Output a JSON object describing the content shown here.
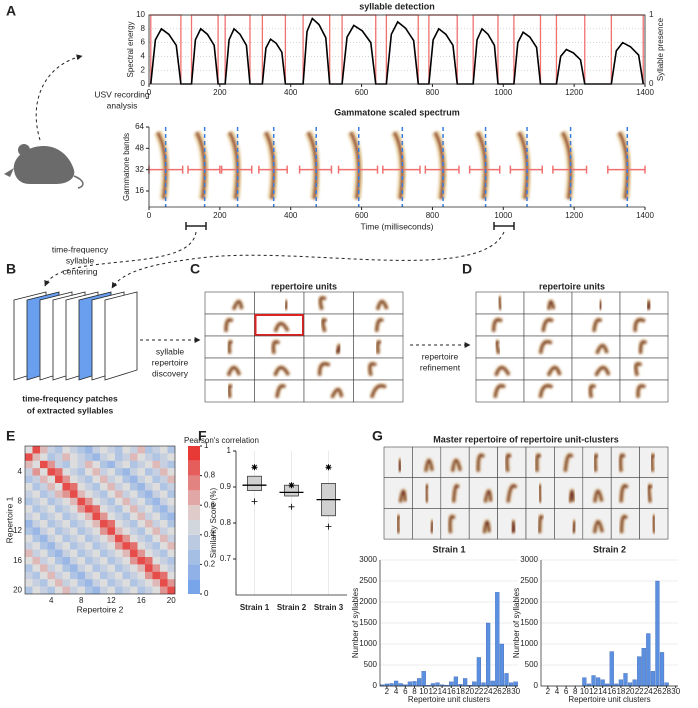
{
  "panel_labels": [
    "A",
    "B",
    "C",
    "D",
    "E",
    "F",
    "G"
  ],
  "diagram": {
    "usv_label": [
      "USV recording",
      "analysis"
    ],
    "centering_label": [
      "time-frequency",
      "syllable",
      "centering"
    ],
    "patches_label": [
      "time-frequency patches",
      "of extracted syllables"
    ],
    "discovery_label": [
      "syllable",
      "repertoire",
      "discovery"
    ],
    "refinement_label": [
      "repertoire",
      "refinement"
    ],
    "repertoire_c_title": "repertoire units",
    "repertoire_d_title": "repertoire units",
    "master_title": "Master repertoire of repertoire unit-clusters"
  },
  "chart_data": [
    {
      "type": "line",
      "title": "syllable detection",
      "ylabel": "Spectral energy",
      "y2label": "Syllable presence",
      "color": "#000000",
      "interval_color": "#f07070",
      "x": [
        5,
        18,
        35,
        56,
        77,
        90,
        120,
        131,
        146,
        165,
        184,
        195,
        215,
        226,
        240,
        257,
        275,
        285,
        320,
        330,
        343,
        359,
        375,
        385,
        435,
        446,
        461,
        480,
        499,
        510,
        545,
        559,
        578,
        602,
        626,
        640,
        670,
        684,
        702,
        724,
        747,
        760,
        790,
        802,
        818,
        838,
        858,
        870,
        915,
        926,
        940,
        957,
        975,
        985,
        1030,
        1041,
        1056,
        1075,
        1094,
        1105,
        1150,
        1162,
        1178,
        1198,
        1218,
        1230,
        1305,
        1319,
        1337,
        1359,
        1382,
        1395
      ],
      "values": [
        0,
        6.4,
        8,
        7.2,
        5.6,
        0,
        0,
        6.4,
        8,
        7.2,
        5.6,
        0,
        0,
        6.4,
        8,
        7.2,
        5.6,
        0,
        0,
        5.2,
        6.5,
        5.9,
        4.6,
        0,
        0,
        7.6,
        9.5,
        8.6,
        6.7,
        0,
        0,
        6.8,
        8.5,
        7.7,
        6,
        0,
        0,
        7.2,
        9,
        8.1,
        6.3,
        0,
        0,
        6.4,
        8,
        7.2,
        5.6,
        0,
        0,
        6.4,
        8,
        7.2,
        5.6,
        0,
        0,
        6,
        7.5,
        6.8,
        5.3,
        0,
        0,
        4,
        5,
        4.5,
        3.5,
        0,
        0,
        4.8,
        6,
        5.4,
        4.2,
        0
      ],
      "syllable_intervals": [
        [
          5,
          90
        ],
        [
          120,
          195
        ],
        [
          215,
          285
        ],
        [
          320,
          385
        ],
        [
          435,
          510
        ],
        [
          545,
          640
        ],
        [
          670,
          760
        ],
        [
          790,
          870
        ],
        [
          915,
          985
        ],
        [
          1030,
          1105
        ],
        [
          1150,
          1230
        ],
        [
          1305,
          1395
        ]
      ],
      "xlim": [
        0,
        1400
      ],
      "xticks": [
        0,
        200,
        400,
        600,
        800,
        1000,
        1200,
        1400
      ],
      "ylim": [
        0,
        10
      ],
      "yticks": [
        0,
        2,
        4,
        6,
        8,
        10
      ],
      "y2lim": [
        0,
        1
      ],
      "y2ticks": [
        0,
        1
      ],
      "grid": true
    },
    {
      "type": "spectrogram",
      "title": "Gammatone scaled spectrum",
      "ylabel": "Gammatone bands",
      "xlabel": "Time (milliseconds)",
      "center_color": "#3b7ddd",
      "segment_color": "#f07070",
      "centers": [
        47,
        157,
        250,
        352,
        472,
        592,
        715,
        830,
        950,
        1067,
        1190,
        1350
      ],
      "center_band": 32,
      "segments": [
        [
          0,
          95
        ],
        [
          110,
          200
        ],
        [
          205,
          290
        ],
        [
          310,
          390
        ],
        [
          425,
          515
        ],
        [
          535,
          645
        ],
        [
          660,
          765
        ],
        [
          780,
          875
        ],
        [
          905,
          990
        ],
        [
          1020,
          1110
        ],
        [
          1140,
          1235
        ],
        [
          1295,
          1400
        ]
      ],
      "xlim": [
        0,
        1400
      ],
      "xticks": [
        0,
        200,
        400,
        600,
        800,
        1000,
        1200,
        1400
      ],
      "ylim": [
        4,
        64
      ],
      "yticks": [
        16,
        32,
        48,
        64
      ]
    },
    {
      "type": "heatmap",
      "xlabel": "Repertoire 2",
      "ylabel": "Repertoire 1",
      "colorbar_label": "Pearson's correlation",
      "values": [
        [
          0.5,
          0.9,
          0.6,
          0.4,
          0.3,
          0.5,
          0.4,
          0.3,
          0.2,
          0.4,
          0.5,
          0.4,
          0.3,
          0.5,
          0.4,
          0.6,
          0.3,
          0.4,
          0.5,
          0.3
        ],
        [
          0.9,
          0.6,
          0.5,
          0.3,
          0.4,
          0.6,
          0.5,
          0.4,
          0.3,
          0.2,
          0.4,
          0.5,
          0.3,
          0.4,
          0.6,
          0.5,
          0.4,
          0.3,
          0.4,
          0.5
        ],
        [
          0.6,
          0.5,
          0.9,
          0.7,
          0.4,
          0.3,
          0.5,
          0.4,
          0.6,
          0.5,
          0.3,
          0.2,
          0.4,
          0.5,
          0.3,
          0.4,
          0.5,
          0.6,
          0.4,
          0.3
        ],
        [
          0.4,
          0.7,
          0.5,
          0.9,
          0.8,
          0.5,
          0.4,
          0.3,
          0.5,
          0.6,
          0.4,
          0.5,
          0.3,
          0.2,
          0.4,
          0.5,
          0.3,
          0.4,
          0.6,
          0.5
        ],
        [
          0.3,
          0.4,
          0.6,
          0.5,
          0.9,
          0.7,
          0.5,
          0.4,
          0.3,
          0.5,
          0.6,
          0.4,
          0.5,
          0.3,
          0.2,
          0.4,
          0.5,
          0.3,
          0.4,
          0.6
        ],
        [
          0.5,
          0.3,
          0.4,
          0.6,
          0.5,
          0.9,
          0.8,
          0.5,
          0.4,
          0.3,
          0.5,
          0.6,
          0.4,
          0.5,
          0.3,
          0.2,
          0.4,
          0.5,
          0.3,
          0.4
        ],
        [
          0.4,
          0.5,
          0.3,
          0.4,
          0.6,
          0.7,
          0.9,
          0.6,
          0.5,
          0.4,
          0.3,
          0.5,
          0.6,
          0.4,
          0.5,
          0.3,
          0.2,
          0.4,
          0.5,
          0.3
        ],
        [
          0.3,
          0.4,
          0.5,
          0.3,
          0.4,
          0.5,
          0.6,
          0.9,
          0.7,
          0.5,
          0.4,
          0.3,
          0.5,
          0.6,
          0.4,
          0.5,
          0.3,
          0.2,
          0.4,
          0.5
        ],
        [
          0.5,
          0.3,
          0.4,
          0.5,
          0.3,
          0.4,
          0.5,
          0.7,
          0.9,
          0.8,
          0.5,
          0.4,
          0.3,
          0.5,
          0.6,
          0.4,
          0.5,
          0.3,
          0.2,
          0.4
        ],
        [
          0.4,
          0.5,
          0.3,
          0.4,
          0.5,
          0.3,
          0.4,
          0.5,
          0.6,
          0.9,
          0.7,
          0.5,
          0.4,
          0.3,
          0.5,
          0.6,
          0.4,
          0.5,
          0.3,
          0.2
        ],
        [
          0.2,
          0.4,
          0.5,
          0.3,
          0.4,
          0.5,
          0.3,
          0.4,
          0.5,
          0.6,
          0.9,
          0.8,
          0.5,
          0.4,
          0.3,
          0.5,
          0.6,
          0.4,
          0.5,
          0.3
        ],
        [
          0.3,
          0.2,
          0.4,
          0.5,
          0.3,
          0.4,
          0.5,
          0.3,
          0.4,
          0.5,
          0.7,
          0.9,
          0.6,
          0.5,
          0.4,
          0.3,
          0.5,
          0.6,
          0.4,
          0.5
        ],
        [
          0.5,
          0.3,
          0.2,
          0.4,
          0.5,
          0.3,
          0.4,
          0.5,
          0.3,
          0.4,
          0.5,
          0.6,
          0.9,
          0.7,
          0.5,
          0.4,
          0.3,
          0.5,
          0.6,
          0.4
        ],
        [
          0.4,
          0.5,
          0.3,
          0.2,
          0.4,
          0.5,
          0.3,
          0.4,
          0.5,
          0.3,
          0.4,
          0.5,
          0.7,
          0.9,
          0.8,
          0.5,
          0.4,
          0.3,
          0.5,
          0.6
        ],
        [
          0.6,
          0.4,
          0.5,
          0.3,
          0.2,
          0.4,
          0.5,
          0.3,
          0.4,
          0.5,
          0.3,
          0.4,
          0.5,
          0.6,
          0.9,
          0.7,
          0.5,
          0.4,
          0.3,
          0.5
        ],
        [
          0.5,
          0.6,
          0.4,
          0.5,
          0.3,
          0.2,
          0.4,
          0.5,
          0.3,
          0.4,
          0.5,
          0.3,
          0.4,
          0.5,
          0.7,
          0.9,
          0.8,
          0.5,
          0.4,
          0.3
        ],
        [
          0.3,
          0.5,
          0.6,
          0.4,
          0.5,
          0.3,
          0.2,
          0.4,
          0.5,
          0.3,
          0.4,
          0.5,
          0.3,
          0.4,
          0.5,
          0.6,
          0.9,
          0.7,
          0.5,
          0.4
        ],
        [
          0.4,
          0.3,
          0.5,
          0.6,
          0.4,
          0.5,
          0.3,
          0.2,
          0.4,
          0.5,
          0.3,
          0.4,
          0.5,
          0.3,
          0.4,
          0.5,
          0.7,
          0.9,
          0.8,
          0.5
        ],
        [
          0.5,
          0.4,
          0.3,
          0.5,
          0.6,
          0.4,
          0.5,
          0.3,
          0.2,
          0.4,
          0.5,
          0.3,
          0.4,
          0.5,
          0.3,
          0.4,
          0.5,
          0.6,
          0.9,
          0.7
        ],
        [
          0.3,
          0.5,
          0.4,
          0.3,
          0.5,
          0.6,
          0.4,
          0.5,
          0.3,
          0.2,
          0.4,
          0.5,
          0.3,
          0.4,
          0.5,
          0.3,
          0.4,
          0.5,
          0.7,
          0.9
        ]
      ],
      "xticks": [
        4,
        8,
        12,
        16,
        20
      ],
      "yticks": [
        4,
        8,
        12,
        16,
        20
      ],
      "clim": [
        0,
        1
      ],
      "cticks": [
        0,
        0.2,
        0.4,
        0.6,
        0.8,
        1
      ]
    },
    {
      "type": "box",
      "ylabel": "Similarity Score (%)",
      "categories": [
        "Strain 1",
        "Strain 2",
        "Strain 3"
      ],
      "color": "#d0d0d0",
      "boxes": [
        {
          "q1": 0.89,
          "median": 0.905,
          "q3": 0.93,
          "upper": 0.955,
          "lower": 0.86
        },
        {
          "q1": 0.875,
          "median": 0.885,
          "q3": 0.905,
          "upper": 0.905,
          "lower": 0.845
        },
        {
          "q1": 0.82,
          "median": 0.865,
          "q3": 0.91,
          "upper": 0.955,
          "lower": 0.79
        }
      ],
      "ylim": [
        0.6,
        1.0
      ],
      "yticks": [
        0.7,
        0.8,
        0.9,
        1
      ]
    },
    {
      "type": "bar",
      "title": "Strain 1",
      "xlabel": "Repertoire unit clusters",
      "ylabel": "Number of syllables",
      "color": "#5b8fe0",
      "x": [
        1,
        2,
        3,
        4,
        5,
        6,
        7,
        8,
        9,
        10,
        11,
        12,
        13,
        14,
        15,
        16,
        17,
        18,
        19,
        20,
        21,
        22,
        23,
        24,
        25,
        26,
        27,
        28,
        29,
        30
      ],
      "values": [
        30,
        50,
        60,
        120,
        60,
        30,
        100,
        110,
        180,
        350,
        20,
        60,
        80,
        30,
        20,
        100,
        220,
        40,
        180,
        20,
        100,
        680,
        80,
        1500,
        120,
        2230,
        1000,
        300,
        80,
        100
      ],
      "xlim": [
        0.5,
        30.5
      ],
      "xticks": [
        2,
        4,
        6,
        8,
        10,
        12,
        14,
        16,
        18,
        20,
        22,
        24,
        26,
        28,
        30
      ],
      "ylim": [
        0,
        3000
      ],
      "yticks": [
        0,
        500,
        1000,
        1500,
        2000,
        2500,
        3000
      ],
      "grid": true
    },
    {
      "type": "bar",
      "title": "Strain 2",
      "xlabel": "Repertoire unit clusters",
      "ylabel": "Number of syllables",
      "color": "#5b8fe0",
      "x": [
        1,
        2,
        3,
        4,
        5,
        6,
        7,
        8,
        9,
        10,
        11,
        12,
        13,
        14,
        15,
        16,
        17,
        18,
        19,
        20,
        21,
        22,
        23,
        24,
        25,
        26,
        27,
        28,
        29,
        30
      ],
      "values": [
        0,
        0,
        0,
        0,
        0,
        0,
        0,
        0,
        0,
        200,
        50,
        250,
        200,
        150,
        50,
        820,
        50,
        150,
        300,
        80,
        150,
        700,
        900,
        1250,
        350,
        2500,
        800,
        80,
        0,
        0
      ],
      "xlim": [
        0.5,
        30.5
      ],
      "xticks": [
        2,
        4,
        6,
        8,
        10,
        12,
        14,
        16,
        18,
        20,
        22,
        24,
        26,
        28,
        30
      ],
      "ylim": [
        0,
        3000
      ],
      "yticks": [
        0,
        500,
        1000,
        1500,
        2000,
        2500,
        3000
      ],
      "grid": true
    }
  ]
}
